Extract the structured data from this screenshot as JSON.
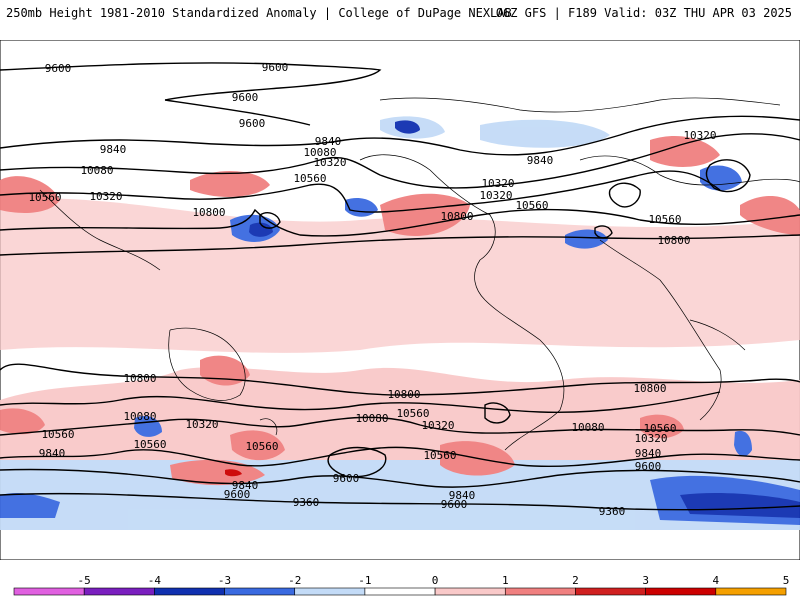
{
  "header": {
    "left": "250mb Height 1981-2010 Standardized Anomaly | College of DuPage NEXLAB",
    "right": "06Z GFS | F189 Valid: 03Z THU APR 03 2025"
  },
  "colorbar": {
    "ticks": [
      "-5",
      "-4",
      "-3",
      "-2",
      "-1",
      "0",
      "1",
      "2",
      "3",
      "4",
      "5"
    ],
    "colors": [
      "#e060e0",
      "#7a1fbf",
      "#1030b0",
      "#3a6ae0",
      "#c3dbf7",
      "#ffffff",
      "#f9c9c9",
      "#f08080",
      "#d02020",
      "#cc0000",
      "#f5a000"
    ]
  },
  "contour_labels": [
    "9600",
    "9600",
    "9600",
    "9600",
    "9840",
    "9840",
    "9840",
    "10080",
    "10080",
    "10320",
    "10320",
    "10320",
    "10560",
    "10560",
    "10560",
    "10800",
    "10800",
    "10800",
    "10560",
    "10320",
    "10320",
    "10800",
    "10800",
    "10800",
    "10080",
    "10320",
    "10560",
    "10560",
    "10080",
    "10560",
    "10080",
    "10320",
    "10560",
    "10320",
    "9840",
    "9840",
    "9600",
    "9600",
    "9840",
    "9600",
    "9360",
    "9360",
    "9840",
    "9600",
    "10560",
    "10560"
  ]
}
